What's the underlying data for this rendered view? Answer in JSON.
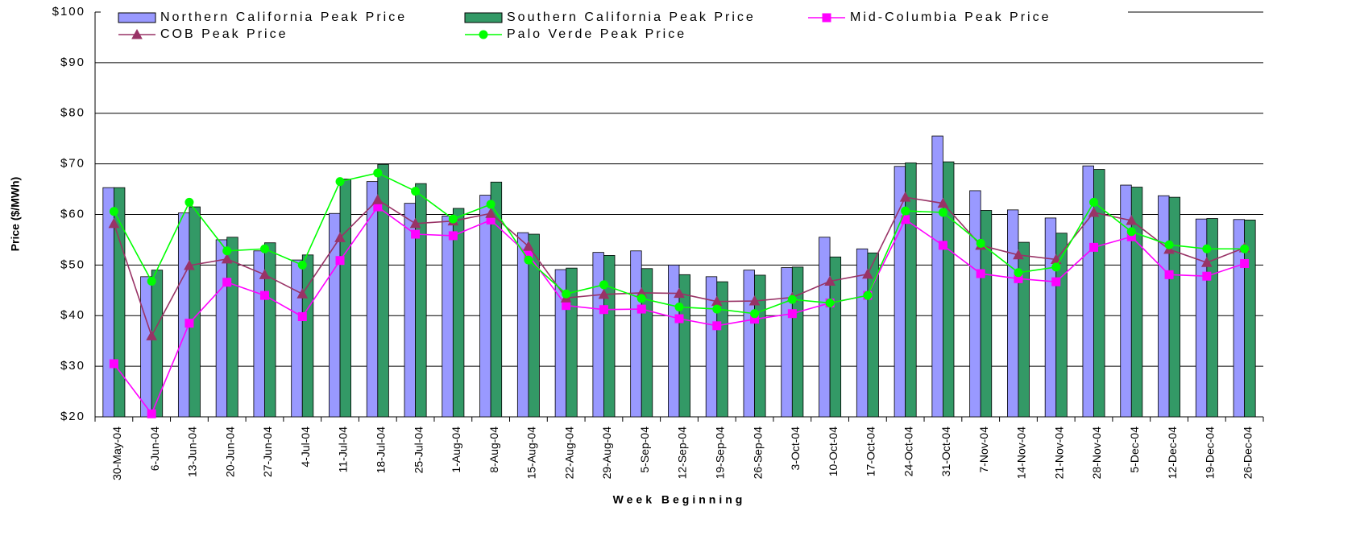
{
  "chart_data": {
    "type": "bar",
    "y_label": "Price ($/MWh)",
    "x_label": "Week Beginning",
    "categories": [
      "30-May-04",
      "6-Jun-04",
      "13-Jun-04",
      "20-Jun-04",
      "27-Jun-04",
      "4-Jul-04",
      "11-Jul-04",
      "18-Jul-04",
      "25-Jul-04",
      "1-Aug-04",
      "8-Aug-04",
      "15-Aug-04",
      "22-Aug-04",
      "29-Aug-04",
      "5-Sep-04",
      "12-Sep-04",
      "19-Sep-04",
      "26-Sep-04",
      "3-Oct-04",
      "10-Oct-04",
      "17-Oct-04",
      "24-Oct-04",
      "31-Oct-04",
      "7-Nov-04",
      "14-Nov-04",
      "21-Nov-04",
      "28-Nov-04",
      "5-Dec-04",
      "12-Dec-04",
      "19-Dec-04",
      "26-Dec-04"
    ],
    "ylim": [
      20,
      100
    ],
    "yticks": [
      {
        "value": 20,
        "label": "$20"
      },
      {
        "value": 30,
        "label": "$30"
      },
      {
        "value": 40,
        "label": "$40"
      },
      {
        "value": 50,
        "label": "$50"
      },
      {
        "value": 60,
        "label": "$60"
      },
      {
        "value": 70,
        "label": "$70"
      },
      {
        "value": 80,
        "label": "$80"
      },
      {
        "value": 90,
        "label": "$90"
      },
      {
        "value": 100,
        "label": "$100"
      }
    ],
    "grid": true,
    "series": [
      {
        "name": "Northern California Peak Price",
        "type": "bar",
        "color": "#9999ff",
        "values": [
          65.3,
          47.7,
          60.3,
          55.0,
          52.8,
          51.0,
          60.2,
          66.5,
          62.2,
          59.7,
          63.8,
          56.4,
          49.1,
          52.5,
          52.8,
          50.0,
          47.7,
          49.0,
          49.5,
          55.5,
          53.2,
          69.5,
          75.5,
          64.7,
          60.9,
          59.3,
          69.6,
          65.8,
          63.7,
          59.1,
          59.0
        ]
      },
      {
        "name": "Southern California Peak Price",
        "type": "bar",
        "color": "#339966",
        "values": [
          65.3,
          49.0,
          61.5,
          55.5,
          54.4,
          52.0,
          67.0,
          69.9,
          66.1,
          61.2,
          66.4,
          56.1,
          49.4,
          51.9,
          49.3,
          48.1,
          46.7,
          48.0,
          49.6,
          51.6,
          52.4,
          70.2,
          70.4,
          60.8,
          54.5,
          56.3,
          68.9,
          65.4,
          63.4,
          59.2,
          58.9
        ]
      },
      {
        "name": "Mid-Columbia Peak Price",
        "type": "line",
        "marker": "square",
        "color": "#ff00ff",
        "values": [
          30.5,
          20.6,
          38.5,
          46.6,
          44.0,
          39.8,
          50.9,
          61.5,
          56.1,
          55.8,
          58.9,
          52.0,
          42.0,
          41.2,
          41.3,
          39.4,
          38.0,
          39.3,
          40.4,
          42.5,
          44.0,
          59.0,
          53.9,
          48.3,
          47.3,
          46.7,
          53.5,
          55.6,
          48.1,
          47.8,
          50.3
        ]
      },
      {
        "name": "COB Peak Price",
        "type": "line",
        "marker": "triangle",
        "color": "#993366",
        "values": [
          58.2,
          36.0,
          49.9,
          51.2,
          48.1,
          44.3,
          55.4,
          62.9,
          58.2,
          58.7,
          60.2,
          53.7,
          43.5,
          44.2,
          44.5,
          44.4,
          42.8,
          42.9,
          43.6,
          46.8,
          48.2,
          63.4,
          62.2,
          53.9,
          52.0,
          51.1,
          60.4,
          58.8,
          53.1,
          50.5,
          53.4
        ]
      },
      {
        "name": "Palo Verde Peak Price",
        "type": "line",
        "marker": "circle",
        "color": "#00ff00",
        "values": [
          60.6,
          46.8,
          62.4,
          52.8,
          53.2,
          50.0,
          66.5,
          68.2,
          64.6,
          59.1,
          62.0,
          51.0,
          44.3,
          46.1,
          43.4,
          41.7,
          41.3,
          40.4,
          43.2,
          42.5,
          44.0,
          60.7,
          60.4,
          54.3,
          48.5,
          49.6,
          62.4,
          56.6,
          54.0,
          53.2,
          53.2
        ]
      }
    ]
  }
}
